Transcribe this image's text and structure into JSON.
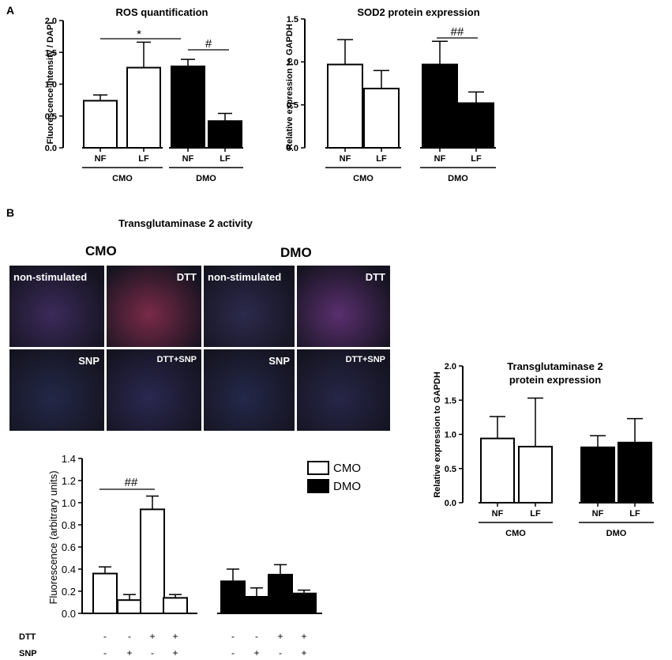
{
  "panel_a_label": "A",
  "panel_b_label": "B",
  "section_b_title": "Transglutaminase 2 activity",
  "micro": {
    "groups": [
      "CMO",
      "DMO"
    ],
    "tiles": [
      {
        "label": "non-stimulated",
        "tint": "#3b2a5a"
      },
      {
        "label": "DTT",
        "tint": "#7a2a48"
      },
      {
        "label": "non-stimulated",
        "tint": "#2c2a4c"
      },
      {
        "label": "DTT",
        "tint": "#5a2f6e"
      },
      {
        "label": "SNP",
        "tint": "#232848"
      },
      {
        "label": "DTT+SNP",
        "tint": "#2a2850"
      },
      {
        "label": "SNP",
        "tint": "#24284a"
      },
      {
        "label": "DTT+SNP",
        "tint": "#262648"
      }
    ]
  },
  "chart_data": [
    {
      "type": "bar",
      "title": "ROS quantification",
      "ylabel": "Fluorescence intensity / DAPI",
      "ylim": [
        0,
        2.0
      ],
      "yticks": [
        "0.0",
        "0.5",
        "1.0",
        "1.5",
        "2.0"
      ],
      "categories": [
        "NF",
        "LF",
        "NF",
        "LF"
      ],
      "groups": [
        "CMO",
        "DMO"
      ],
      "values": [
        0.74,
        1.26,
        1.28,
        0.42
      ],
      "errors": [
        0.09,
        0.4,
        0.11,
        0.12
      ],
      "fills": [
        "#ffffff",
        "#ffffff",
        "#000000",
        "#000000"
      ],
      "annotations": [
        "*",
        "#"
      ]
    },
    {
      "type": "bar",
      "title": "SOD2 protein expression",
      "ylabel": "Relative expression to GAPDH",
      "ylim": [
        0,
        1.5
      ],
      "yticks": [
        "0.0",
        "0.5",
        "1.0",
        "1.5"
      ],
      "categories": [
        "NF",
        "LF",
        "NF",
        "LF"
      ],
      "groups": [
        "CMO",
        "DMO"
      ],
      "values": [
        0.97,
        0.69,
        0.97,
        0.52
      ],
      "errors": [
        0.29,
        0.21,
        0.27,
        0.13
      ],
      "fills": [
        "#ffffff",
        "#ffffff",
        "#000000",
        "#000000"
      ],
      "annotations": [
        "##"
      ]
    },
    {
      "type": "bar",
      "title": "Transglutaminase 2 protein expression",
      "title_lines": [
        "Transglutaminase 2",
        "protein expression"
      ],
      "ylabel": "Relative expression to GAPDH",
      "ylim": [
        0,
        2.0
      ],
      "yticks": [
        "0.0",
        "0.5",
        "1.0",
        "1.5",
        "2.0"
      ],
      "categories": [
        "NF",
        "LF",
        "NF",
        "LF"
      ],
      "groups": [
        "CMO",
        "DMO"
      ],
      "values": [
        0.94,
        0.82,
        0.81,
        0.88
      ],
      "errors": [
        0.32,
        0.71,
        0.17,
        0.35
      ],
      "fills": [
        "#ffffff",
        "#ffffff",
        "#000000",
        "#000000"
      ]
    },
    {
      "type": "bar",
      "ylabel": "Fluorescence (arbitrary units)",
      "ylim": [
        0,
        1.4
      ],
      "yticks": [
        "0.0",
        "0.2",
        "0.4",
        "0.6",
        "0.8",
        "1.0",
        "1.2",
        "1.4"
      ],
      "series": [
        {
          "name": "CMO",
          "values": [
            0.36,
            0.12,
            0.94,
            0.14
          ],
          "errors": [
            0.06,
            0.05,
            0.12,
            0.03
          ],
          "fill": "#ffffff"
        },
        {
          "name": "DMO",
          "values": [
            0.29,
            0.15,
            0.35,
            0.18
          ],
          "errors": [
            0.11,
            0.08,
            0.09,
            0.03
          ],
          "fill": "#000000"
        }
      ],
      "treatments": {
        "DTT": [
          "-",
          "-",
          "+",
          "+"
        ],
        "SNP": [
          "-",
          "+",
          "-",
          "+"
        ]
      },
      "annotations": [
        "##"
      ]
    }
  ]
}
